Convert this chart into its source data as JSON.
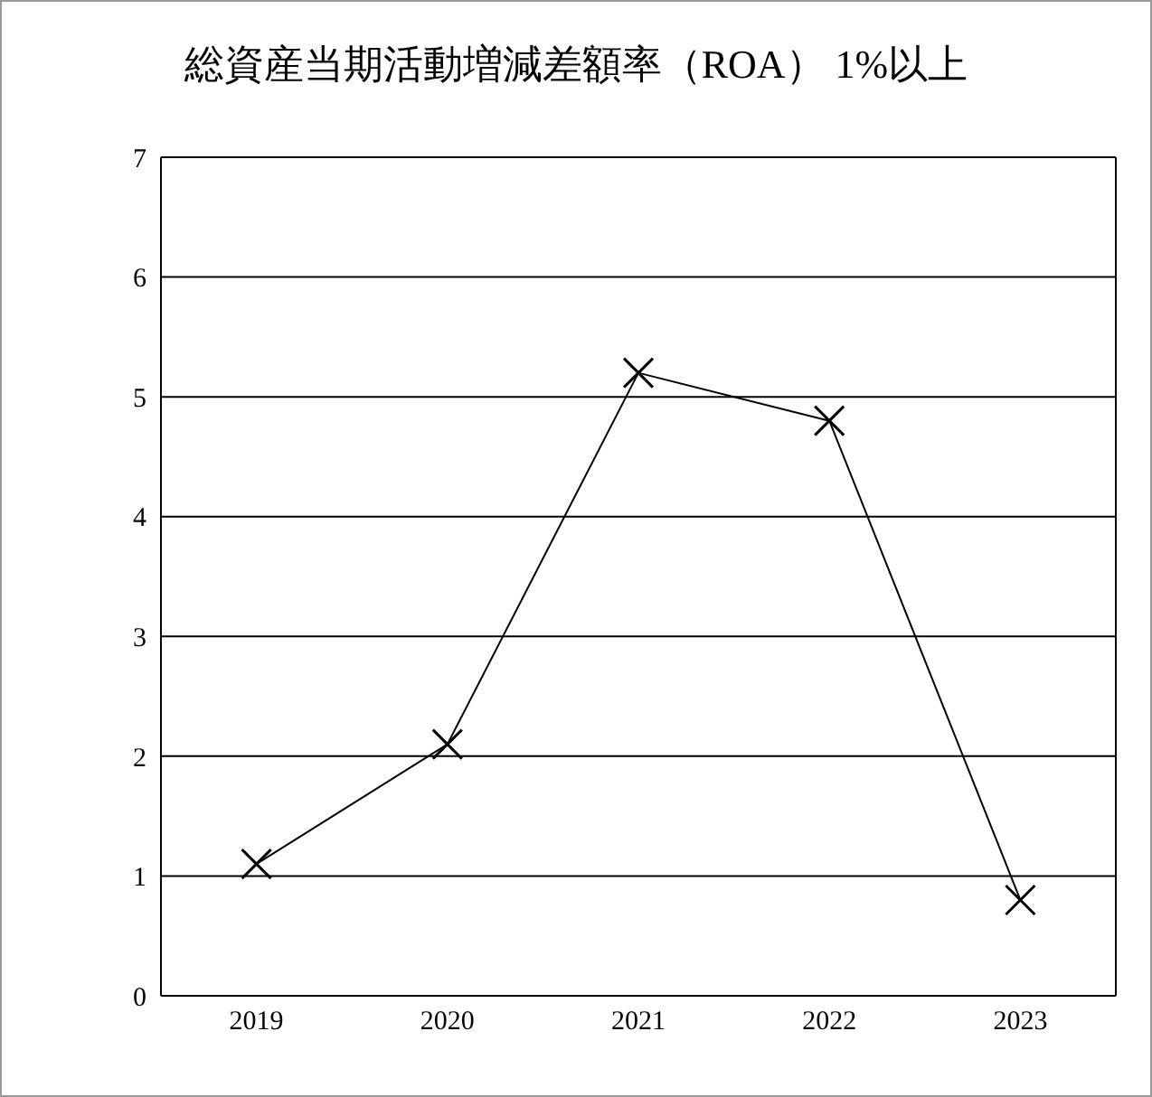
{
  "chart_data": {
    "type": "line",
    "title": "総資産当期活動増減差額率（ROA） 1%以上",
    "categories": [
      "2019",
      "2020",
      "2021",
      "2022",
      "2023"
    ],
    "series": [
      {
        "color": "#000000",
        "values": [
          1.1,
          2.1,
          5.2,
          4.8,
          0.8
        ]
      }
    ],
    "ylim": [
      0,
      7
    ],
    "yticks": [
      0,
      1,
      2,
      3,
      4,
      5,
      6,
      7
    ],
    "grid": "y",
    "marker": "cross",
    "line_style": "solid",
    "legend": false
  }
}
